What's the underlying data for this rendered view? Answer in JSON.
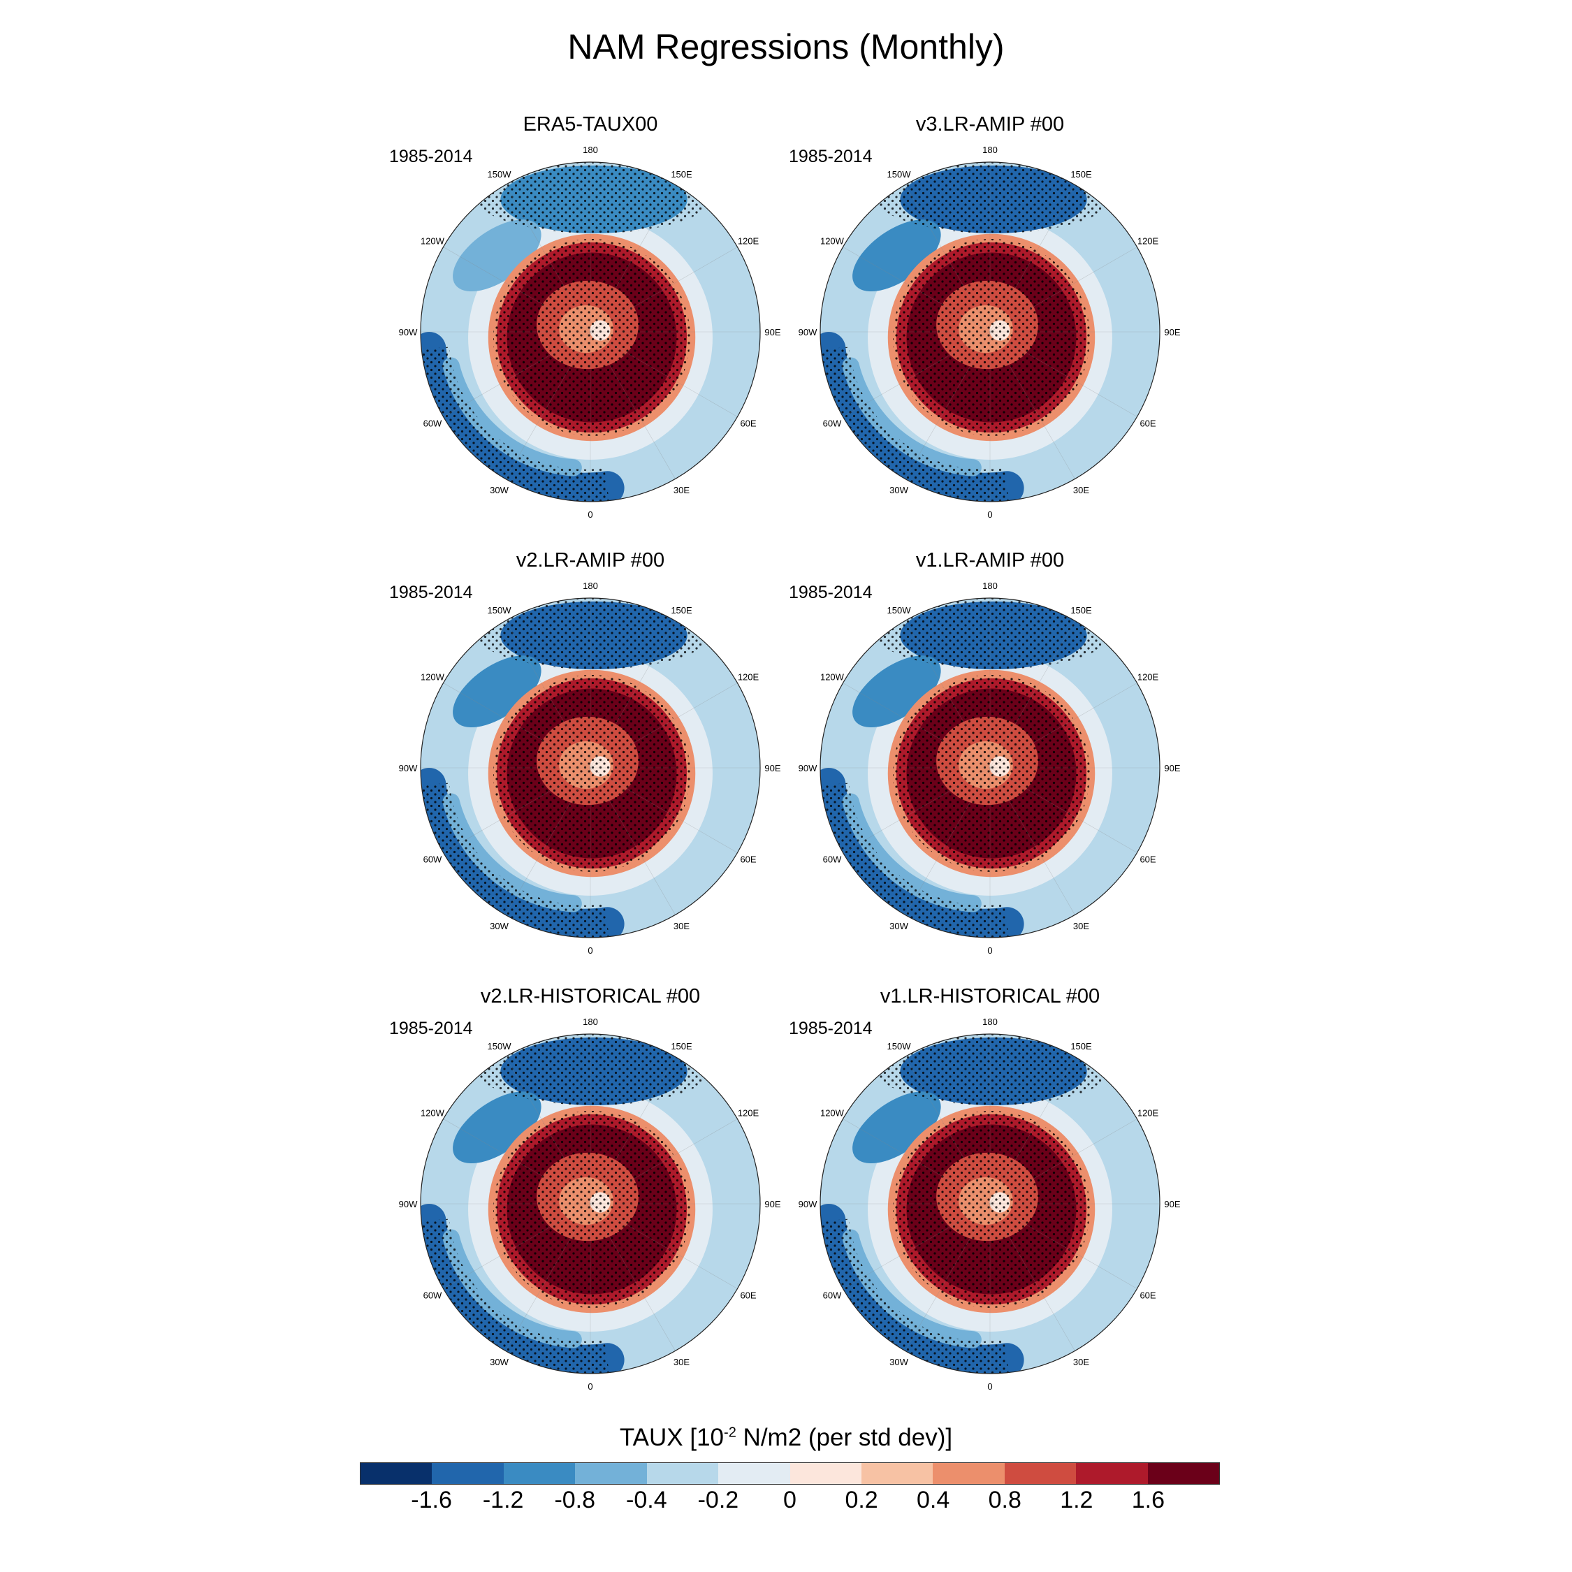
{
  "figure": {
    "title": "NAM Regressions (Monthly)"
  },
  "panels": [
    {
      "title": "ERA5-TAUX00",
      "period": "1985-2014"
    },
    {
      "title": "v3.LR-AMIP  #00",
      "period": "1985-2014"
    },
    {
      "title": "v2.LR-AMIP  #00",
      "period": "1985-2014"
    },
    {
      "title": "v1.LR-AMIP  #00",
      "period": "1985-2014"
    },
    {
      "title": "v2.LR-HISTORICAL  #00",
      "period": "1985-2014"
    },
    {
      "title": "v1.LR-HISTORICAL  #00",
      "period": "1985-2014"
    }
  ],
  "map_labels": {
    "lon_180": "180",
    "lon_150W": "150W",
    "lon_150E": "150E",
    "lon_120W": "120W",
    "lon_120E": "120E",
    "lon_90W": "90W",
    "lon_90E": "90E",
    "lon_60W": "60W",
    "lon_60E": "60E",
    "lon_30W": "30W",
    "lon_30E": "30E",
    "lon_0": "0"
  },
  "colorbar": {
    "title_prefix": "TAUX [10",
    "title_exp": "-2",
    "title_suffix": " N/m2 (per std dev)]",
    "colors": [
      "#08306b",
      "#2166ac",
      "#3a8bc2",
      "#73b1d8",
      "#b7d8ea",
      "#e3ecf3",
      "#fce6dc",
      "#f7c2a4",
      "#ec8f6c",
      "#cf4c40",
      "#ae1a2b",
      "#6b0019"
    ],
    "tick_labels": [
      "-1.6",
      "-1.2",
      "-0.8",
      "-0.4",
      "-0.2",
      "0",
      "0.2",
      "0.4",
      "0.8",
      "1.2",
      "1.6"
    ]
  },
  "chart_data": {
    "type": "heatmap",
    "title": "NAM Regressions (Monthly)",
    "variable": "TAUX",
    "units": "10^-2 N/m2 (per std dev)",
    "projection": "north polar stereographic",
    "contour_levels": [
      -1.6,
      -1.2,
      -0.8,
      -0.4,
      -0.2,
      0,
      0.2,
      0.4,
      0.8,
      1.2,
      1.6
    ],
    "panels": [
      {
        "name": "ERA5-TAUX00",
        "period": "1985-2014",
        "pattern": [
          {
            "region": "polar cap ring (~55-75N)",
            "value": 1.6
          },
          {
            "region": "arctic interior",
            "value": 0.4
          },
          {
            "region": "North Atlantic subtropics (~35N)",
            "value": -1.6
          },
          {
            "region": "North Pacific (~35N)",
            "value": -1.2
          }
        ]
      },
      {
        "name": "v3.LR-AMIP  #00",
        "period": "1985-2014",
        "pattern": [
          {
            "region": "polar cap ring (~55-75N)",
            "value": 1.6
          },
          {
            "region": "arctic interior",
            "value": 0.4
          },
          {
            "region": "North Atlantic subtropics (~35N)",
            "value": -1.6
          },
          {
            "region": "North Pacific (~35N)",
            "value": -1.6
          }
        ]
      },
      {
        "name": "v2.LR-AMIP  #00",
        "period": "1985-2014",
        "pattern": [
          {
            "region": "polar cap ring (~55-75N)",
            "value": 1.6
          },
          {
            "region": "arctic interior",
            "value": 0.4
          },
          {
            "region": "North Atlantic subtropics (~35N)",
            "value": -1.6
          },
          {
            "region": "North Pacific (~35N)",
            "value": -1.6
          }
        ]
      },
      {
        "name": "v1.LR-AMIP  #00",
        "period": "1985-2014",
        "pattern": [
          {
            "region": "polar cap ring (~55-75N)",
            "value": 1.6
          },
          {
            "region": "arctic interior",
            "value": 0.4
          },
          {
            "region": "North Atlantic subtropics (~35N)",
            "value": -1.6
          },
          {
            "region": "North Pacific (~35N)",
            "value": -1.6
          }
        ]
      },
      {
        "name": "v2.LR-HISTORICAL  #00",
        "period": "1985-2014",
        "pattern": [
          {
            "region": "polar cap ring (~55-75N)",
            "value": 1.6
          },
          {
            "region": "arctic interior",
            "value": 0.4
          },
          {
            "region": "North Atlantic subtropics (~35N)",
            "value": -1.6
          },
          {
            "region": "North Pacific (~35N)",
            "value": -1.6
          }
        ]
      },
      {
        "name": "v1.LR-HISTORICAL  #00",
        "period": "1985-2014",
        "pattern": [
          {
            "region": "polar cap ring (~55-75N)",
            "value": 1.6
          },
          {
            "region": "arctic interior",
            "value": 0.4
          },
          {
            "region": "North Atlantic subtropics (~35N)",
            "value": -1.6
          },
          {
            "region": "North Pacific (~35N)",
            "value": -1.6
          }
        ]
      }
    ]
  }
}
